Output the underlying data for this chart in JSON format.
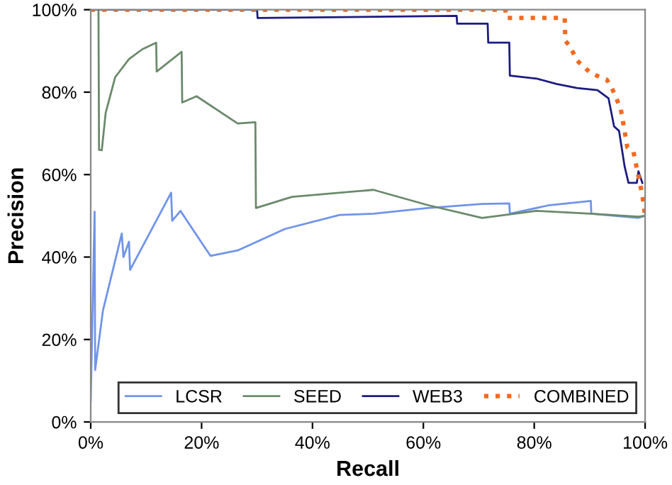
{
  "chart_data": {
    "type": "line",
    "xlabel": "Recall",
    "ylabel": "Precision",
    "xlim": [
      0,
      100
    ],
    "ylim": [
      0,
      100
    ],
    "xticks": [
      {
        "value": 0,
        "label": "0%"
      },
      {
        "value": 20,
        "label": "20%"
      },
      {
        "value": 40,
        "label": "40%"
      },
      {
        "value": 60,
        "label": "60%"
      },
      {
        "value": 80,
        "label": "80%"
      },
      {
        "value": 100,
        "label": "100%"
      }
    ],
    "yticks": [
      {
        "value": 0,
        "label": "0%"
      },
      {
        "value": 20,
        "label": "20%"
      },
      {
        "value": 40,
        "label": "40%"
      },
      {
        "value": 60,
        "label": "60%"
      },
      {
        "value": 80,
        "label": "80%"
      },
      {
        "value": 100,
        "label": "100%"
      }
    ],
    "grid": false,
    "legend": "bottom right",
    "marker": "none",
    "series": [
      {
        "name": "LCSR",
        "color": "#7094e8",
        "line_style": "solid",
        "x": [
          0,
          0.7,
          0.8,
          2.2,
          5.6,
          5.9,
          6.9,
          7.1,
          14.5,
          14.7,
          16.2,
          20.6,
          21.6,
          26.5,
          35,
          44.9,
          51,
          60.8,
          70.6,
          75.5,
          75.6,
          82.8,
          90.2,
          90.3,
          98.8,
          100
        ],
        "values": [
          5,
          51,
          12.6,
          27,
          45.7,
          40,
          43.7,
          36.9,
          55.6,
          48.8,
          51.2,
          42.3,
          40.3,
          41.6,
          46.8,
          50.2,
          50.5,
          51.9,
          52.9,
          53,
          50.5,
          52.6,
          53.6,
          50.5,
          49.5,
          50
        ]
      },
      {
        "name": "SEED",
        "color": "#6b8a6b",
        "line_style": "solid",
        "x": [
          1.4,
          1.5,
          2,
          2.7,
          4.4,
          6.9,
          9.3,
          11.8,
          11.9,
          16.4,
          16.5,
          19.1,
          26.5,
          29.7,
          29.8,
          36.3,
          51,
          60.8,
          70.6,
          80.4,
          90.2,
          98.8,
          100
        ],
        "values": [
          100,
          66,
          65.9,
          75,
          83.6,
          88,
          90.4,
          92,
          85,
          89.8,
          77.5,
          79,
          72.4,
          72.7,
          51.9,
          54.6,
          56.3,
          52.6,
          49.5,
          51.2,
          50.5,
          49.8,
          50
        ]
      },
      {
        "name": "WEB3",
        "color": "#1c1c80",
        "line_style": "solid",
        "x": [
          0,
          30,
          30.1,
          66,
          66.1,
          71.6,
          71.7,
          75.5,
          75.6,
          80.4,
          84,
          87.7,
          91.4,
          93.4,
          94.4,
          95.3,
          96.3,
          97,
          98.5,
          98.8,
          99.5
        ],
        "values": [
          100,
          100,
          98,
          98.5,
          96.6,
          96.6,
          92,
          92,
          84,
          83.3,
          82,
          81,
          80.5,
          78.5,
          71.7,
          70.6,
          62,
          58,
          58,
          60.8,
          58
        ]
      },
      {
        "name": "COMBINED",
        "color": "#f26a1f",
        "line_style": "dotted",
        "x": [
          0,
          74.8,
          74.9,
          85.5,
          85.6,
          86.5,
          87.7,
          90.2,
          93.1,
          94,
          95.6,
          96.8,
          97.9,
          99.5,
          100
        ],
        "values": [
          100,
          100,
          98,
          98,
          92.5,
          91,
          87.7,
          84.6,
          83,
          81,
          76,
          66.6,
          65.5,
          55,
          50
        ]
      }
    ]
  }
}
